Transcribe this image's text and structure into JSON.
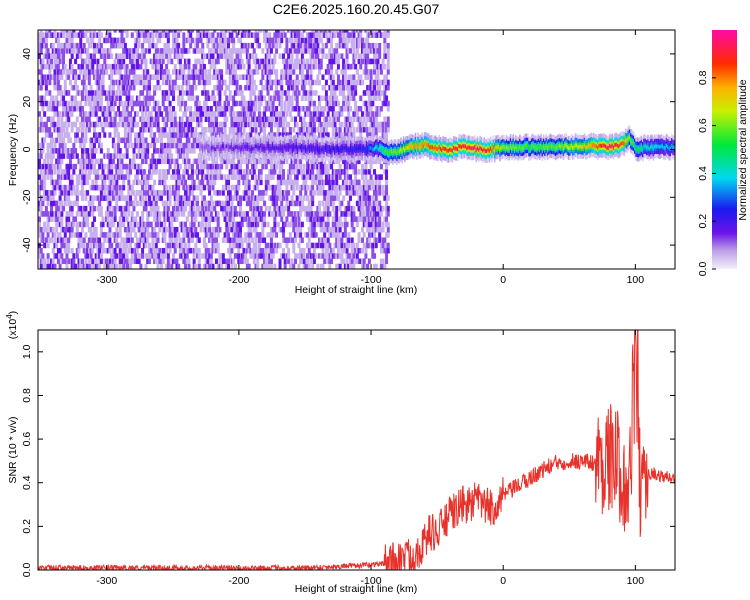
{
  "title": "C2E6.2025.160.20.45.G07",
  "chart_data": [
    {
      "type": "heatmap",
      "title": "C2E6.2025.160.20.45.G07",
      "xlabel": "Height of straight line (km)",
      "ylabel": "Frequency (Hz)",
      "xlim": [
        -352,
        130
      ],
      "ylim": [
        -50,
        50
      ],
      "xticks": [
        -300,
        -200,
        -100,
        0,
        100
      ],
      "xtick_labels": [
        "-300",
        "-200",
        "-100",
        "0",
        "100"
      ],
      "yticks": [
        -40,
        -20,
        0,
        20,
        40
      ],
      "ytick_labels": [
        "-40",
        "-20",
        "0",
        "20",
        "40"
      ],
      "noise_region_x": [
        -352,
        -88
      ],
      "ridge": {
        "x": [
          -230,
          -200,
          -175,
          -150,
          -125,
          -105,
          -95,
          -90,
          -80,
          -70,
          -60,
          -50,
          -40,
          -30,
          -20,
          -10,
          0,
          20,
          40,
          60,
          80,
          90,
          95,
          100,
          110,
          130
        ],
        "freq": [
          1,
          0.5,
          1,
          0.5,
          0,
          0,
          0.5,
          -1,
          -1,
          1,
          2,
          0.5,
          0,
          1.5,
          0,
          0,
          1,
          1,
          1,
          1.5,
          1,
          2,
          5,
          0,
          1,
          1
        ],
        "amplitude": [
          0.12,
          0.15,
          0.18,
          0.2,
          0.22,
          0.25,
          0.4,
          0.55,
          0.6,
          0.75,
          0.8,
          0.85,
          0.9,
          0.88,
          0.95,
          0.85,
          0.6,
          0.55,
          0.6,
          0.7,
          0.95,
          0.85,
          0.6,
          0.5,
          0.4,
          0.35
        ]
      },
      "colorbar": {
        "label": "Normalized spectral amplitude",
        "range": [
          0,
          1
        ],
        "ticks": [
          0.0,
          0.2,
          0.4,
          0.6,
          0.8
        ],
        "tick_labels": [
          "0.0",
          "0.2",
          "0.4",
          "0.6",
          "0.8"
        ]
      }
    },
    {
      "type": "line",
      "xlabel": "Height of straight line (km)",
      "ylabel": "SNR (10 * v/v)",
      "exponent_label": "(x10",
      "exponent_sup": "4",
      "exponent_close": ")",
      "xlim": [
        -352,
        130
      ],
      "ylim": [
        0,
        1.1
      ],
      "grid": false,
      "line_color": "#e8312a",
      "xticks": [
        -300,
        -200,
        -100,
        0,
        100
      ],
      "xtick_labels": [
        "-300",
        "-200",
        "-100",
        "0",
        "100"
      ],
      "yticks": [
        0.0,
        0.2,
        0.4,
        0.6,
        0.8,
        1.0
      ],
      "ytick_labels": [
        "0.0",
        "0.2",
        "0.4",
        "0.6",
        "0.8",
        "1.0"
      ],
      "series": [
        {
          "x": [
            -352,
            -300,
            -250,
            -200,
            -150,
            -110,
            -90,
            -80,
            -70,
            -60,
            -55,
            -50,
            -45,
            -40,
            -35,
            -30,
            -25,
            -20,
            -15,
            -10,
            -5,
            0,
            5,
            10,
            20,
            30,
            40,
            50,
            60,
            70,
            75,
            80,
            85,
            90,
            95,
            98,
            100,
            102,
            105,
            110,
            120,
            130
          ],
          "y": [
            0.01,
            0.01,
            0.01,
            0.01,
            0.01,
            0.02,
            0.03,
            0.05,
            0.06,
            0.12,
            0.18,
            0.16,
            0.22,
            0.25,
            0.28,
            0.3,
            0.3,
            0.32,
            0.3,
            0.28,
            0.3,
            0.34,
            0.36,
            0.38,
            0.42,
            0.46,
            0.49,
            0.5,
            0.5,
            0.49,
            0.5,
            0.52,
            0.5,
            0.45,
            0.35,
            0.6,
            0.95,
            0.5,
            0.3,
            0.45,
            0.43,
            0.42
          ]
        }
      ]
    }
  ]
}
